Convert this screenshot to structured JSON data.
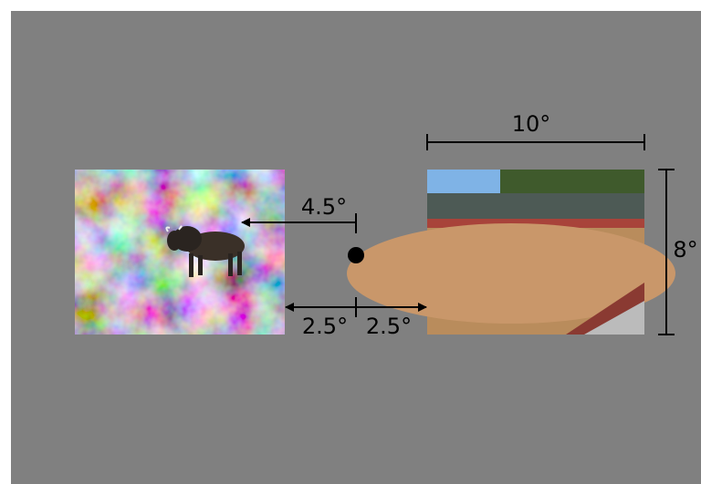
{
  "annotations": {
    "width": "10°",
    "height": "8°",
    "eccentricity": "4.5°",
    "gap_left": "2.5°",
    "gap_right": "2.5°"
  }
}
